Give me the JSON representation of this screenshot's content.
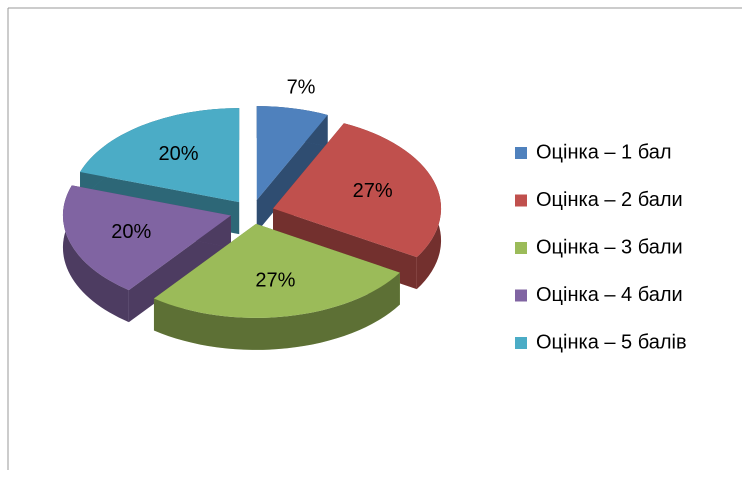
{
  "chart_data": {
    "type": "pie",
    "categories": [
      "Оцінка – 1 бал",
      "Оцінка – 2 бали",
      "Оцінка – 3 бали",
      "Оцінка – 4 бали",
      "Оцінка – 5 балів"
    ],
    "values": [
      7,
      27,
      27,
      20,
      20
    ],
    "value_labels": [
      "7%",
      "27%",
      "27%",
      "20%",
      "20%"
    ],
    "colors": [
      "#4f81bd",
      "#c0504d",
      "#9bbb59",
      "#8064a2",
      "#4bacc6"
    ],
    "legend": "right"
  }
}
